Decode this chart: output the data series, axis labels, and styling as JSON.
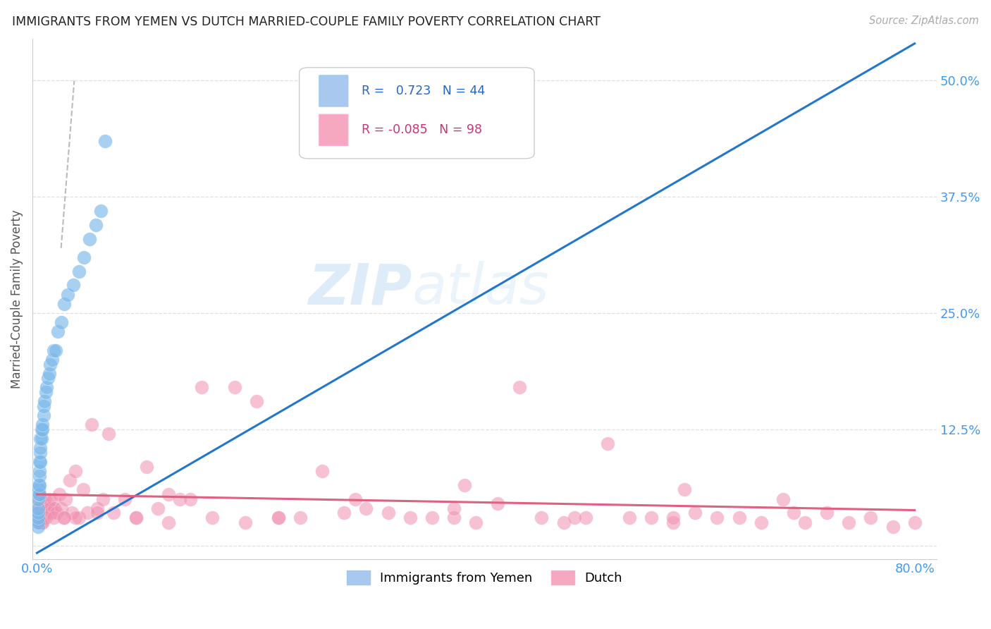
{
  "title": "IMMIGRANTS FROM YEMEN VS DUTCH MARRIED-COUPLE FAMILY POVERTY CORRELATION CHART",
  "source": "Source: ZipAtlas.com",
  "ylabel": "Married-Couple Family Poverty",
  "xlim": [
    -0.004,
    0.82
  ],
  "ylim": [
    -0.015,
    0.545
  ],
  "xtick_positions": [
    0.0,
    0.2,
    0.4,
    0.6,
    0.8
  ],
  "xticklabels": [
    "0.0%",
    "",
    "",
    "",
    "80.0%"
  ],
  "ytick_positions": [
    0.0,
    0.125,
    0.25,
    0.375,
    0.5
  ],
  "ytick_labels": [
    "",
    "12.5%",
    "25.0%",
    "37.5%",
    "50.0%"
  ],
  "legend_color1": "#a8c8f0",
  "legend_color2": "#f5a8c0",
  "scatter_color1": "#7ab8ea",
  "scatter_color2": "#f090b0",
  "line_color1": "#2277cc",
  "line_color2": "#e06080",
  "watermark_zip": "ZIP",
  "watermark_atlas": "atlas",
  "background_color": "#ffffff",
  "grid_color": "#dddddd",
  "yemen_x": [
    0.001,
    0.001,
    0.001,
    0.001,
    0.001,
    0.001,
    0.0015,
    0.0015,
    0.0015,
    0.002,
    0.002,
    0.002,
    0.002,
    0.002,
    0.003,
    0.003,
    0.003,
    0.003,
    0.004,
    0.004,
    0.005,
    0.005,
    0.006,
    0.006,
    0.007,
    0.008,
    0.009,
    0.01,
    0.011,
    0.012,
    0.014,
    0.015,
    0.017,
    0.019,
    0.022,
    0.025,
    0.028,
    0.033,
    0.038,
    0.043,
    0.048,
    0.054,
    0.058,
    0.062
  ],
  "yemen_y": [
    0.02,
    0.025,
    0.03,
    0.035,
    0.04,
    0.05,
    0.055,
    0.06,
    0.065,
    0.055,
    0.065,
    0.075,
    0.08,
    0.09,
    0.09,
    0.1,
    0.105,
    0.115,
    0.115,
    0.125,
    0.125,
    0.13,
    0.14,
    0.15,
    0.155,
    0.165,
    0.17,
    0.18,
    0.185,
    0.195,
    0.2,
    0.21,
    0.21,
    0.23,
    0.24,
    0.26,
    0.27,
    0.28,
    0.295,
    0.31,
    0.33,
    0.345,
    0.36,
    0.435
  ],
  "dutch_x": [
    0.001,
    0.001,
    0.002,
    0.002,
    0.002,
    0.003,
    0.003,
    0.004,
    0.004,
    0.005,
    0.005,
    0.006,
    0.006,
    0.007,
    0.007,
    0.008,
    0.009,
    0.01,
    0.011,
    0.012,
    0.013,
    0.015,
    0.016,
    0.018,
    0.02,
    0.022,
    0.024,
    0.026,
    0.03,
    0.032,
    0.035,
    0.038,
    0.042,
    0.046,
    0.05,
    0.055,
    0.06,
    0.065,
    0.07,
    0.08,
    0.09,
    0.1,
    0.11,
    0.12,
    0.13,
    0.14,
    0.15,
    0.16,
    0.18,
    0.2,
    0.22,
    0.24,
    0.26,
    0.28,
    0.3,
    0.32,
    0.34,
    0.36,
    0.38,
    0.4,
    0.42,
    0.44,
    0.46,
    0.48,
    0.5,
    0.52,
    0.54,
    0.56,
    0.58,
    0.6,
    0.62,
    0.64,
    0.66,
    0.68,
    0.7,
    0.72,
    0.74,
    0.76,
    0.78,
    0.8,
    0.003,
    0.008,
    0.035,
    0.09,
    0.19,
    0.29,
    0.39,
    0.49,
    0.59,
    0.69,
    0.005,
    0.015,
    0.025,
    0.055,
    0.12,
    0.22,
    0.38,
    0.58
  ],
  "dutch_y": [
    0.03,
    0.045,
    0.025,
    0.04,
    0.055,
    0.03,
    0.05,
    0.03,
    0.045,
    0.025,
    0.04,
    0.03,
    0.045,
    0.035,
    0.05,
    0.04,
    0.035,
    0.04,
    0.05,
    0.04,
    0.035,
    0.05,
    0.04,
    0.035,
    0.055,
    0.04,
    0.03,
    0.05,
    0.07,
    0.035,
    0.08,
    0.03,
    0.06,
    0.035,
    0.13,
    0.04,
    0.05,
    0.12,
    0.035,
    0.05,
    0.03,
    0.085,
    0.04,
    0.055,
    0.05,
    0.05,
    0.17,
    0.03,
    0.17,
    0.155,
    0.03,
    0.03,
    0.08,
    0.035,
    0.04,
    0.035,
    0.03,
    0.03,
    0.03,
    0.025,
    0.045,
    0.17,
    0.03,
    0.025,
    0.03,
    0.11,
    0.03,
    0.03,
    0.025,
    0.035,
    0.03,
    0.03,
    0.025,
    0.05,
    0.025,
    0.035,
    0.025,
    0.03,
    0.02,
    0.025,
    0.025,
    0.03,
    0.03,
    0.03,
    0.025,
    0.05,
    0.065,
    0.03,
    0.06,
    0.035,
    0.025,
    0.03,
    0.03,
    0.035,
    0.025,
    0.03,
    0.04,
    0.03
  ],
  "yemen_line_x": [
    0.0,
    0.8
  ],
  "yemen_line_y": [
    -0.008,
    0.54
  ],
  "dutch_line_x": [
    0.0,
    0.8
  ],
  "dutch_line_y": [
    0.055,
    0.038
  ],
  "dashed_line_x": [
    0.022,
    0.034
  ],
  "dashed_line_y": [
    0.32,
    0.5
  ]
}
